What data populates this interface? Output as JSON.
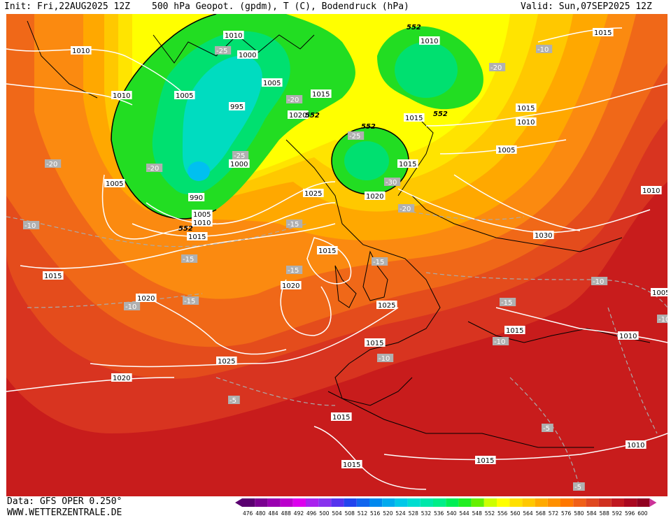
{
  "header": {
    "init": "Init: Fri,22AUG2025 12Z",
    "title": "500 hPa Geopot. (gpdm), T (C), Bodendruck (hPa)",
    "valid": "Valid: Sun,07SEP2025 12Z"
  },
  "footer": {
    "data_source": "Data: GFS OPER 0.250°",
    "website": "WWW.WETTERZENTRALE.DE"
  },
  "colorbar": {
    "labels": [
      "476",
      "480",
      "484",
      "488",
      "492",
      "496",
      "500",
      "504",
      "508",
      "512",
      "516",
      "520",
      "524",
      "528",
      "532",
      "536",
      "540",
      "544",
      "548",
      "552",
      "556",
      "560",
      "564",
      "568",
      "572",
      "576",
      "580",
      "584",
      "588",
      "592",
      "596",
      "600"
    ],
    "colors": [
      "#5a0070",
      "#7a0090",
      "#9a00b0",
      "#bb00cc",
      "#dd00ee",
      "#aa22ee",
      "#8833ee",
      "#5533ee",
      "#2244ee",
      "#1166ee",
      "#0088ee",
      "#00aaee",
      "#00c8e8",
      "#00ddd0",
      "#00e8aa",
      "#00ee88",
      "#00ee55",
      "#22ee22",
      "#66f000",
      "#ccff00",
      "#ffff00",
      "#ffe000",
      "#ffc800",
      "#ffaa00",
      "#ff9000",
      "#ff7800",
      "#f06018",
      "#e04820",
      "#d03020",
      "#c01820",
      "#aa0820",
      "#900020"
    ]
  },
  "pressure_labels": [
    "1010",
    "1010",
    "1010",
    "1015",
    "1010",
    "1000",
    "1005",
    "1005",
    "995",
    "1015",
    "1020",
    "1005",
    "1000",
    "1015",
    "1015",
    "1010",
    "1005",
    "1015",
    "990",
    "1005",
    "1010",
    "1015",
    "1025",
    "1020",
    "1010",
    "1030",
    "1015",
    "1020",
    "1025",
    "1015",
    "1020",
    "1015",
    "1010",
    "1005",
    "1015",
    "1025",
    "1020",
    "1015",
    "1015",
    "1010",
    "1015"
  ],
  "temperature_labels": [
    "-25",
    "-20",
    "-10",
    "-25",
    "-20",
    "-25",
    "-20",
    "-30",
    "-20",
    "-15",
    "-15",
    "-10",
    "-15",
    "-15",
    "-10",
    "-15",
    "-15",
    "-10",
    "-10",
    "-10",
    "-5",
    "-5",
    "-5",
    "-10",
    "-20"
  ],
  "height_labels": [
    "552",
    "552",
    "552",
    "552",
    "552"
  ],
  "icons": {
    "map": "weather-map-icon"
  }
}
